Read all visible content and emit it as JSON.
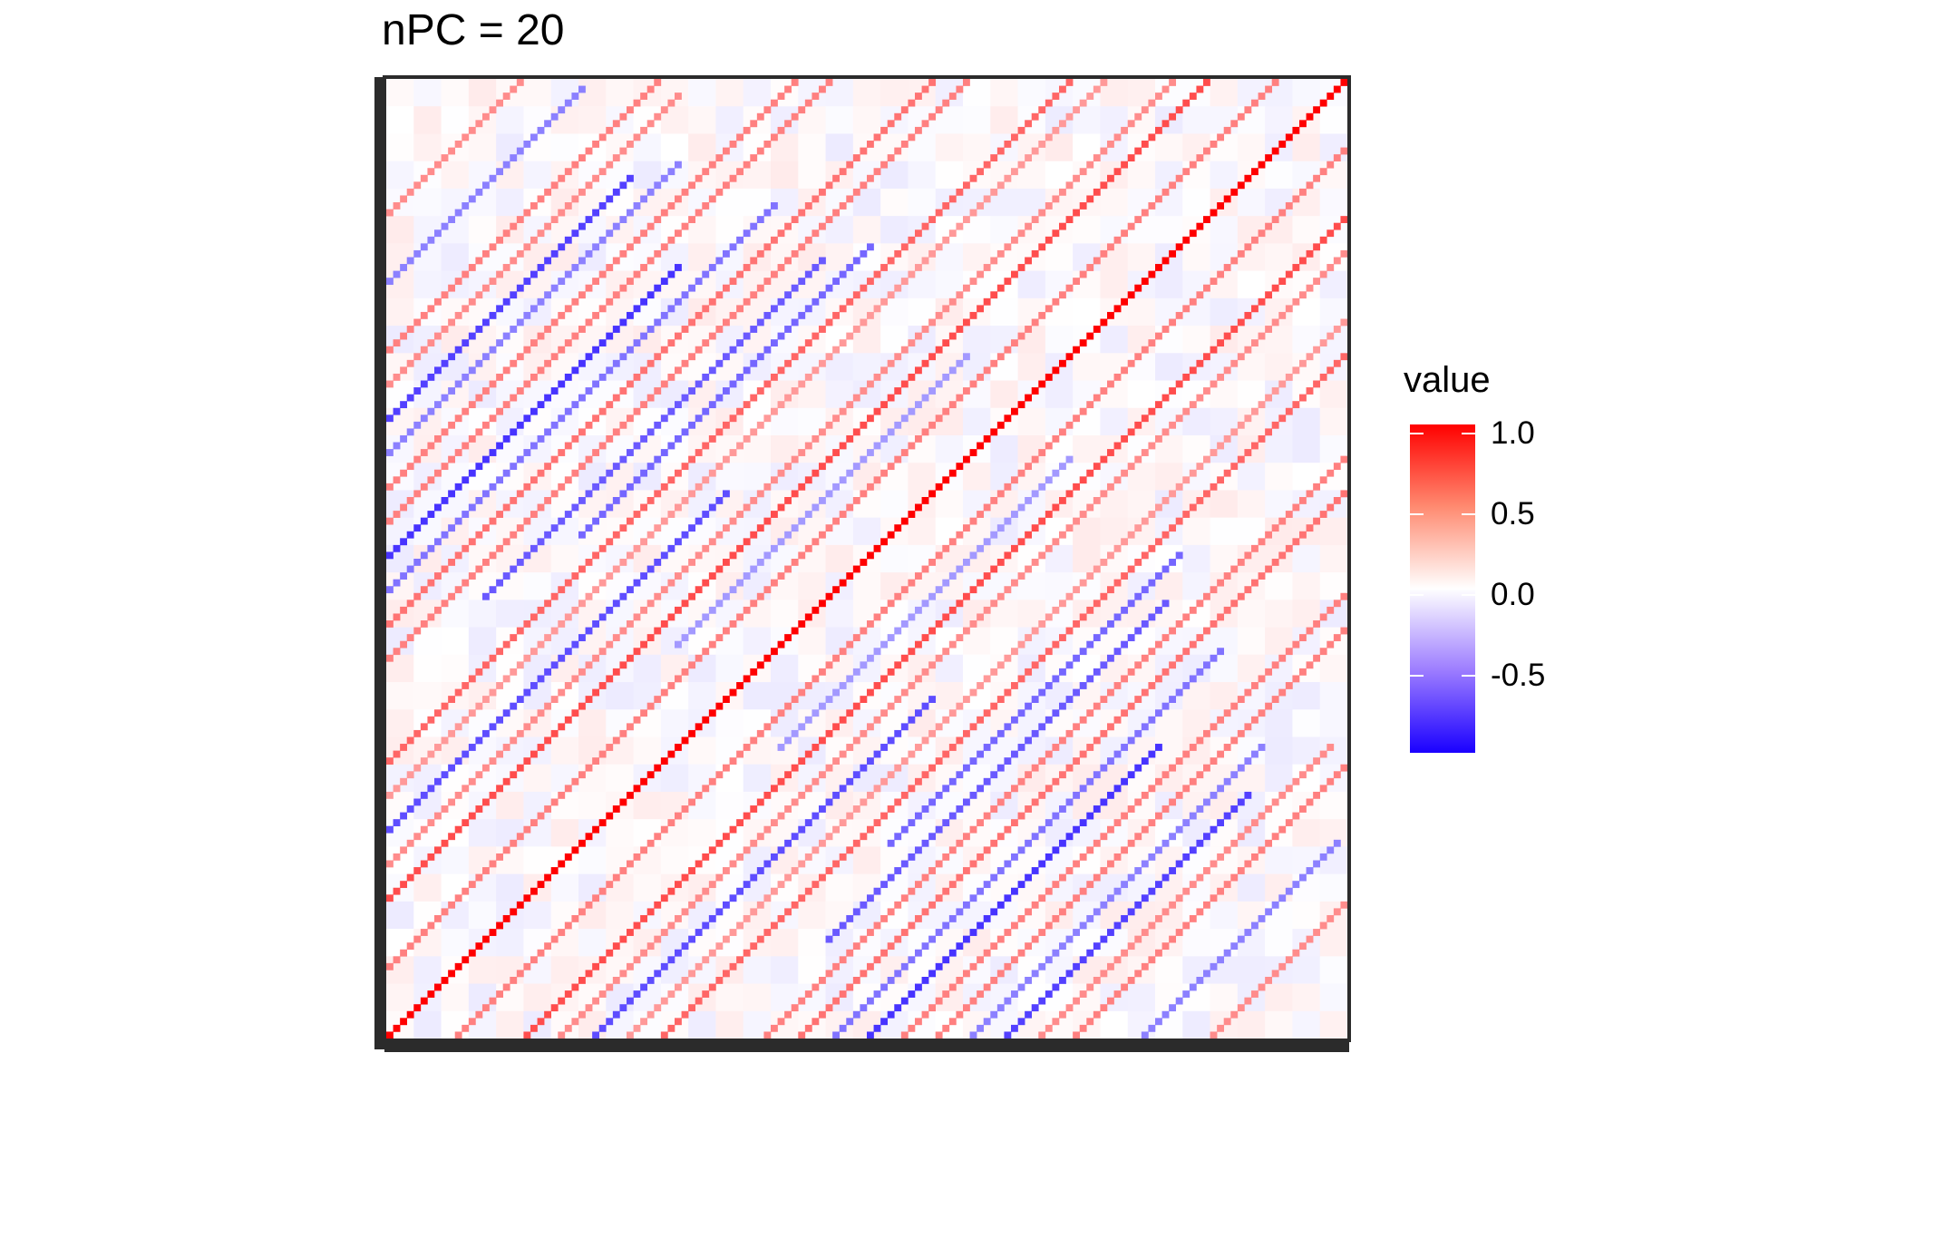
{
  "title": "nPC = 20",
  "chart_data": {
    "type": "heatmap",
    "title": "nPC = 20",
    "xlabel": "",
    "ylabel": "",
    "description_of_values": "correlation matrix; strong positive diagonal (1.0) with off-diagonal positive and negative bands; background near 0 with faint noise",
    "color_scale": {
      "name": "value",
      "low_color": "#1A00FF",
      "mid_color": "#FFFFFF",
      "high_color": "#FF0000",
      "limits": [
        -1.0,
        1.0
      ],
      "breaks": [
        1.0,
        0.5,
        0.0,
        -0.5
      ],
      "break_labels": [
        "1.0",
        "0.5",
        "0.0",
        "-0.5"
      ]
    },
    "matrix_size": 140,
    "diagonals": [
      {
        "offset": 0,
        "value": 1.0
      },
      {
        "offset": 20,
        "value": 0.7,
        "range": [
          0.0,
          1.0
        ]
      },
      {
        "offset": 40,
        "value": 0.6,
        "range": [
          0.0,
          1.0
        ]
      },
      {
        "offset": 60,
        "value": 0.55,
        "range": [
          0.0,
          1.0
        ]
      },
      {
        "offset": 80,
        "value": 0.5,
        "range": [
          0.0,
          1.0
        ]
      },
      {
        "offset": 100,
        "value": 0.5,
        "range": [
          0.0,
          1.0
        ]
      },
      {
        "offset": 120,
        "value": 0.45,
        "range": [
          0.0,
          1.0
        ]
      },
      {
        "offset": 30,
        "value": -0.7,
        "range": [
          0.0,
          0.35
        ]
      },
      {
        "offset": 50,
        "value": -0.65,
        "range": [
          0.1,
          0.45
        ]
      },
      {
        "offset": 70,
        "value": -0.8,
        "range": [
          0.0,
          0.3
        ]
      },
      {
        "offset": 90,
        "value": -0.75,
        "range": [
          0.0,
          0.25
        ]
      },
      {
        "offset": 10,
        "value": 0.5,
        "range": [
          0.0,
          1.0
        ]
      },
      {
        "offset": 15,
        "value": -0.4,
        "range": [
          0.3,
          0.6
        ]
      },
      {
        "offset": 25,
        "value": 0.45,
        "range": [
          0.0,
          1.0
        ]
      },
      {
        "offset": 35,
        "value": 0.4,
        "range": [
          0.0,
          1.0
        ]
      },
      {
        "offset": 45,
        "value": -0.6,
        "range": [
          0.2,
          0.5
        ]
      },
      {
        "offset": 55,
        "value": 0.5,
        "range": [
          0.0,
          1.0
        ]
      },
      {
        "offset": 65,
        "value": -0.55,
        "range": [
          0.0,
          0.4
        ]
      },
      {
        "offset": 75,
        "value": 0.5,
        "range": [
          0.0,
          0.6
        ]
      },
      {
        "offset": 85,
        "value": -0.5,
        "range": [
          0.0,
          0.3
        ]
      },
      {
        "offset": 95,
        "value": 0.45,
        "range": [
          0.0,
          0.3
        ]
      },
      {
        "offset": 110,
        "value": -0.5,
        "range": [
          0.0,
          0.2
        ]
      }
    ]
  },
  "legend": {
    "title": "value",
    "ticks": [
      "1.0",
      "0.5",
      "0.0",
      "-0.5"
    ]
  }
}
